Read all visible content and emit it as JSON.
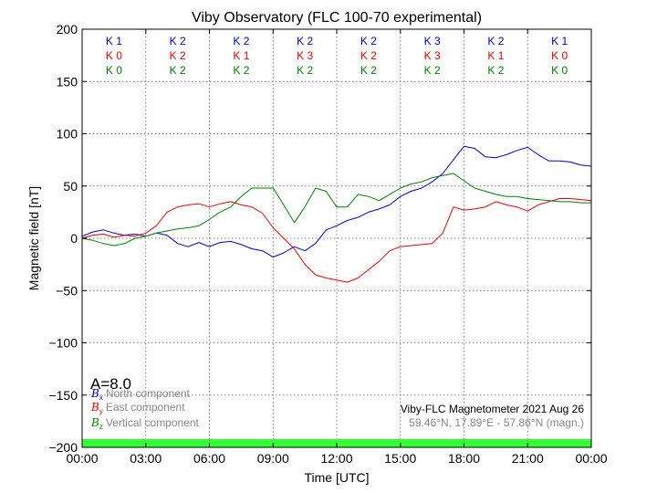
{
  "chart_data": {
    "type": "line",
    "title": "Viby Observatory (FLC 100-70 experimental)",
    "xlabel": "Time [UTC]",
    "ylabel": "Magnetic field [nT]",
    "xlim": [
      0,
      24
    ],
    "ylim": [
      -200,
      200
    ],
    "grid": true,
    "x_tick_labels": [
      "00:00",
      "03:00",
      "06:00",
      "09:00",
      "12:00",
      "15:00",
      "18:00",
      "21:00",
      "00:00"
    ],
    "x_ticks": [
      0,
      3,
      6,
      9,
      12,
      15,
      18,
      21,
      24
    ],
    "y_ticks": [
      -200,
      -150,
      -100,
      -50,
      0,
      50,
      100,
      150,
      200
    ],
    "y_tick_labels": [
      "−200",
      "−150",
      "−100",
      "−50",
      "0",
      "50",
      "100",
      "150",
      "200"
    ],
    "k_indices": {
      "colors": [
        "#0000cc",
        "#ee0000",
        "#008000"
      ],
      "rows": [
        [
          "K 1",
          "K 2",
          "K 2",
          "K 2",
          "K 2",
          "K 3",
          "K 2",
          "K 1"
        ],
        [
          "K 0",
          "K 2",
          "K 1",
          "K 3",
          "K 2",
          "K 3",
          "K 1",
          "K 0"
        ],
        [
          "K 0",
          "K 2",
          "K 2",
          "K 2",
          "K 2",
          "K 2",
          "K 2",
          "K 0"
        ]
      ]
    },
    "a_index": "A=8.0",
    "series": [
      {
        "name": "North component",
        "symbol": "B",
        "subscript": "x",
        "color": "#0000cc",
        "x": [
          0,
          0.5,
          1,
          1.5,
          2,
          2.5,
          3,
          3.5,
          4,
          4.5,
          5,
          5.5,
          6,
          6.5,
          7,
          7.5,
          8,
          8.5,
          9,
          9.5,
          10,
          10.5,
          11,
          11.5,
          12,
          12.5,
          13,
          13.5,
          14,
          14.5,
          15,
          15.5,
          16,
          16.5,
          17,
          17.5,
          18,
          18.5,
          19,
          19.5,
          20,
          20.5,
          21,
          21.5,
          22,
          22.5,
          23,
          23.5,
          24
        ],
        "y": [
          2,
          6,
          8,
          5,
          3,
          4,
          2,
          5,
          3,
          -5,
          -8,
          -4,
          -8,
          -4,
          -3,
          -6,
          -10,
          -12,
          -18,
          -14,
          -8,
          -12,
          -5,
          8,
          12,
          17,
          20,
          25,
          28,
          32,
          40,
          45,
          48,
          54,
          62,
          75,
          88,
          86,
          78,
          77,
          80,
          84,
          87,
          80,
          74,
          74,
          73,
          70,
          69
        ]
      },
      {
        "name": "East component",
        "symbol": "B",
        "subscript": "y",
        "color": "#ee0000",
        "x": [
          0,
          0.5,
          1,
          1.5,
          2,
          2.5,
          3,
          3.5,
          4,
          4.5,
          5,
          5.5,
          6,
          6.5,
          7,
          7.5,
          8,
          8.5,
          9,
          9.5,
          10,
          10.5,
          11,
          11.5,
          12,
          12.5,
          13,
          13.5,
          14,
          14.5,
          15,
          15.5,
          16,
          16.5,
          17,
          17.5,
          18,
          18.5,
          19,
          19.5,
          20,
          20.5,
          21,
          21.5,
          22,
          22.5,
          23,
          23.5,
          24
        ],
        "y": [
          0,
          3,
          4,
          1,
          3,
          2,
          5,
          12,
          25,
          30,
          32,
          33,
          30,
          33,
          35,
          32,
          30,
          24,
          10,
          0,
          -10,
          -25,
          -35,
          -38,
          -40,
          -42,
          -38,
          -30,
          -22,
          -12,
          -8,
          -7,
          -6,
          -5,
          5,
          30,
          27,
          28,
          30,
          35,
          32,
          30,
          26,
          32,
          35,
          38,
          38,
          37,
          36
        ]
      },
      {
        "name": "Vertical component",
        "symbol": "B",
        "subscript": "z",
        "color": "#008000",
        "x": [
          0,
          0.5,
          1,
          1.5,
          2,
          2.5,
          3,
          3.5,
          4,
          4.5,
          5,
          5.5,
          6,
          6.5,
          7,
          7.5,
          8,
          8.5,
          9,
          9.5,
          10,
          10.5,
          11,
          11.5,
          12,
          12.5,
          13,
          13.5,
          14,
          14.5,
          15,
          15.5,
          16,
          16.5,
          17,
          17.5,
          18,
          18.5,
          19,
          19.5,
          20,
          20.5,
          21,
          21.5,
          22,
          22.5,
          23,
          23.5,
          24
        ],
        "y": [
          0,
          -2,
          -5,
          -7,
          -5,
          0,
          2,
          5,
          7,
          9,
          10,
          12,
          18,
          25,
          30,
          40,
          48,
          48,
          48,
          32,
          15,
          30,
          48,
          45,
          30,
          30,
          42,
          40,
          36,
          42,
          48,
          52,
          54,
          58,
          60,
          62,
          55,
          48,
          45,
          42,
          40,
          40,
          38,
          37,
          36,
          35,
          35,
          34,
          34
        ]
      }
    ],
    "footer": {
      "line1": "Viby-FLC Magnetometer 2021 Aug 26",
      "line2": "59.46°N, 17.89°E - 57.86°N (magn.)"
    },
    "bar_color": "#33ff33"
  }
}
